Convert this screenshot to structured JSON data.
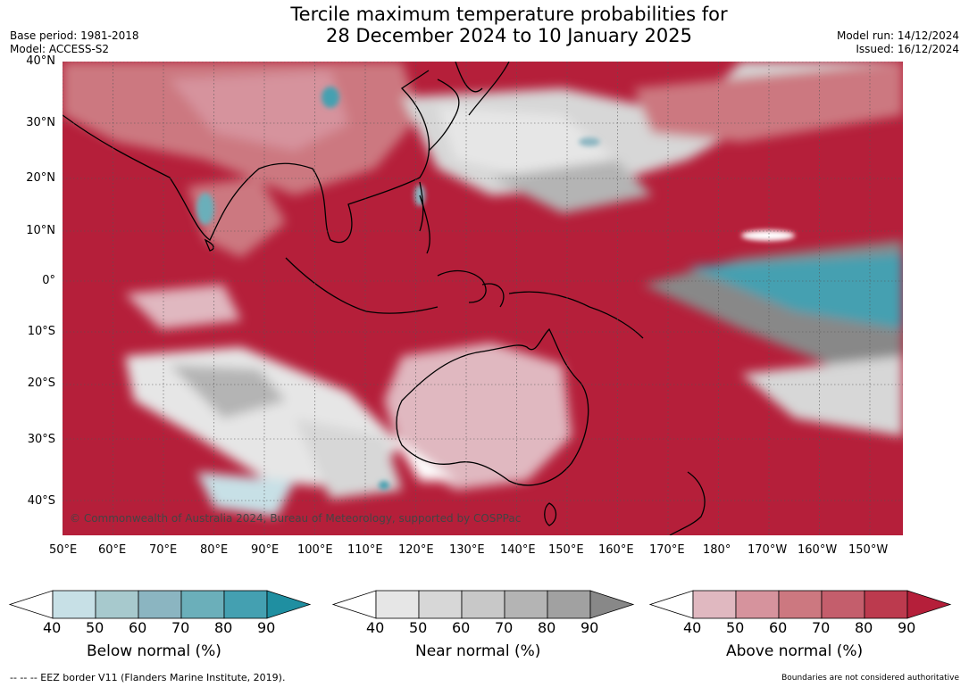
{
  "title": {
    "line1": "Tercile maximum temperature probabilities for",
    "line2": "28 December 2024 to 10 January 2025"
  },
  "meta": {
    "base_period": "Base period: 1981-2018",
    "model": "Model: ACCESS-S2",
    "model_run": "Model run: 14/12/2024",
    "issued": "Issued: 16/12/2024"
  },
  "map": {
    "credit": "© Commonwealth of Australia 2024, Bureau of Meteorology, supported by COSPPac",
    "lat_labels": [
      "40°N",
      "30°N",
      "20°N",
      "10°N",
      "0°",
      "10°S",
      "20°S",
      "30°S",
      "40°S"
    ],
    "lon_labels": [
      "50°E",
      "60°E",
      "70°E",
      "80°E",
      "90°E",
      "100°E",
      "110°E",
      "120°E",
      "130°E",
      "140°E",
      "150°E",
      "160°E",
      "170°E",
      "180°",
      "170°W",
      "160°W",
      "150°W"
    ]
  },
  "colorbars": [
    {
      "title": "Below normal (%)",
      "ticks": [
        "40",
        "50",
        "60",
        "70",
        "80",
        "90"
      ],
      "colors": [
        "#c7e0e6",
        "#a7c9cd",
        "#8bb5c1",
        "#6bafba",
        "#44a0b1",
        "#1f8fa1"
      ]
    },
    {
      "title": "Near normal (%)",
      "ticks": [
        "40",
        "50",
        "60",
        "70",
        "80",
        "90"
      ],
      "colors": [
        "#e6e6e6",
        "#d7d7d7",
        "#c8c8c8",
        "#b4b4b4",
        "#a1a1a1",
        "#888888"
      ]
    },
    {
      "title": "Above normal (%)",
      "ticks": [
        "40",
        "50",
        "60",
        "70",
        "80",
        "90"
      ],
      "colors": [
        "#e0b8c0",
        "#d6939d",
        "#cc7880",
        "#c45e6c",
        "#bc3a4e",
        "#b51f3a"
      ]
    }
  ],
  "footer": {
    "left": "--  --  -- EEZ border V11 (Flanders Marine Institute, 2019).",
    "right": "Boundaries are not considered authoritative"
  }
}
